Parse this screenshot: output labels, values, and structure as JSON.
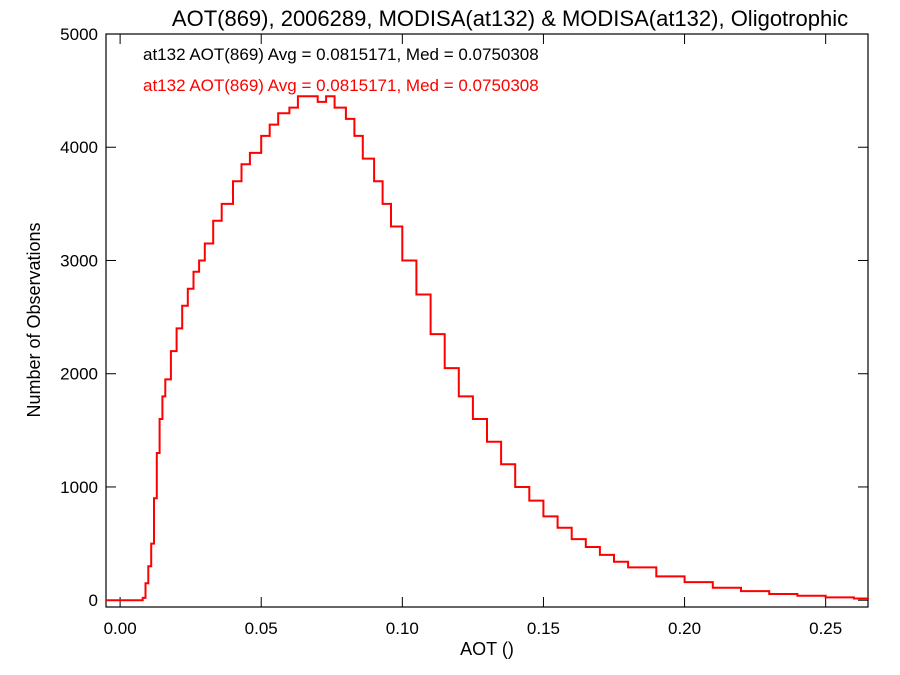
{
  "chart_data": {
    "type": "line",
    "title": "AOT(869), 2006289, MODISA(at132) & MODISA(at132), Oligotrophic",
    "xlabel": "AOT ()",
    "ylabel": "Number of Observations",
    "xlim": [
      -0.005,
      0.265
    ],
    "ylim": [
      -60,
      5000
    ],
    "x_ticks": [
      0.0,
      0.05,
      0.1,
      0.15,
      0.2,
      0.25
    ],
    "x_tick_labels": [
      "0.00",
      "0.05",
      "0.10",
      "0.15",
      "0.20",
      "0.25"
    ],
    "y_ticks": [
      0,
      1000,
      2000,
      3000,
      4000,
      5000
    ],
    "y_tick_labels": [
      "0",
      "1000",
      "2000",
      "3000",
      "4000",
      "5000"
    ],
    "grid": false,
    "annotations": [
      {
        "text": "at132 AOT(869) Avg = 0.0815171, Med = 0.0750308",
        "color": "#000000"
      },
      {
        "text": "at132 AOT(869) Avg = 0.0815171, Med = 0.0750308",
        "color": "#ff0000"
      }
    ],
    "series": [
      {
        "style": "step",
        "color": "#ff0000",
        "x": [
          -0.005,
          0.005,
          0.008,
          0.009,
          0.01,
          0.011,
          0.012,
          0.013,
          0.014,
          0.015,
          0.016,
          0.018,
          0.02,
          0.022,
          0.024,
          0.026,
          0.028,
          0.03,
          0.033,
          0.036,
          0.04,
          0.043,
          0.046,
          0.05,
          0.053,
          0.056,
          0.06,
          0.063,
          0.066,
          0.07,
          0.073,
          0.076,
          0.08,
          0.083,
          0.086,
          0.09,
          0.093,
          0.096,
          0.1,
          0.105,
          0.11,
          0.115,
          0.12,
          0.125,
          0.13,
          0.135,
          0.14,
          0.145,
          0.15,
          0.155,
          0.16,
          0.165,
          0.17,
          0.175,
          0.18,
          0.19,
          0.2,
          0.21,
          0.22,
          0.23,
          0.24,
          0.25,
          0.26,
          0.265
        ],
        "y": [
          0,
          0,
          20,
          150,
          300,
          500,
          900,
          1300,
          1600,
          1800,
          1950,
          2200,
          2400,
          2600,
          2750,
          2900,
          3000,
          3150,
          3350,
          3500,
          3700,
          3850,
          3950,
          4100,
          4200,
          4300,
          4350,
          4450,
          4450,
          4400,
          4450,
          4350,
          4250,
          4100,
          3900,
          3700,
          3500,
          3300,
          3000,
          2700,
          2350,
          2050,
          1800,
          1600,
          1400,
          1200,
          1000,
          880,
          740,
          640,
          540,
          470,
          400,
          340,
          290,
          210,
          160,
          110,
          80,
          55,
          40,
          25,
          15,
          10
        ]
      }
    ]
  }
}
